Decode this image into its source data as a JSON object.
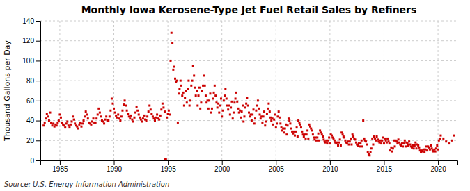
{
  "chart_data": {
    "type": "scatter",
    "title": "Monthly Iowa Kerosene-Type Jet Fuel Retail Sales by Refiners",
    "ylabel": "Thousand Gallons per Day",
    "source": "Source: U.S. Energy Information Administration",
    "color": "#cc0000",
    "marker": "square",
    "grid": true,
    "xlim": [
      1983.2,
      2021.8
    ],
    "ylim": [
      0,
      140
    ],
    "xticks": [
      1985,
      1990,
      1995,
      2000,
      2005,
      2010,
      2015,
      2020
    ],
    "yticks": [
      0,
      20,
      40,
      60,
      80,
      100,
      120,
      140
    ],
    "x": [
      1983.5,
      1983.6,
      1983.7,
      1983.8,
      1983.9,
      1984.0,
      1984.1,
      1984.2,
      1984.3,
      1984.4,
      1984.5,
      1984.6,
      1984.7,
      1984.8,
      1984.9,
      1985.0,
      1985.1,
      1985.2,
      1985.3,
      1985.4,
      1985.5,
      1985.6,
      1985.7,
      1985.8,
      1985.9,
      1986.0,
      1986.1,
      1986.2,
      1986.3,
      1986.4,
      1986.5,
      1986.6,
      1986.7,
      1986.8,
      1986.9,
      1987.0,
      1987.1,
      1987.2,
      1987.3,
      1987.4,
      1987.5,
      1987.6,
      1987.7,
      1987.8,
      1987.9,
      1988.0,
      1988.1,
      1988.2,
      1988.3,
      1988.4,
      1988.5,
      1988.6,
      1988.7,
      1988.8,
      1988.9,
      1989.0,
      1989.1,
      1989.2,
      1989.3,
      1989.4,
      1989.5,
      1989.6,
      1989.7,
      1989.8,
      1989.9,
      1990.0,
      1990.1,
      1990.2,
      1990.3,
      1990.4,
      1990.5,
      1990.6,
      1990.7,
      1990.8,
      1990.9,
      1991.0,
      1991.1,
      1991.2,
      1991.3,
      1991.4,
      1991.5,
      1991.6,
      1991.7,
      1991.8,
      1991.9,
      1992.0,
      1992.1,
      1992.2,
      1992.3,
      1992.4,
      1992.5,
      1992.6,
      1992.7,
      1992.8,
      1992.9,
      1993.0,
      1993.1,
      1993.2,
      1993.3,
      1993.4,
      1993.5,
      1993.6,
      1993.7,
      1993.8,
      1993.9,
      1994.0,
      1994.1,
      1994.2,
      1994.3,
      1994.4,
      1994.5,
      1994.6,
      1994.7,
      1994.75,
      1994.82,
      1994.9,
      1995.0,
      1995.08,
      1995.17,
      1995.25,
      1995.33,
      1995.42,
      1995.5,
      1995.58,
      1995.67,
      1995.75,
      1995.83,
      1995.92,
      1996.0,
      1996.08,
      1996.17,
      1996.25,
      1996.33,
      1996.42,
      1996.5,
      1996.58,
      1996.67,
      1996.75,
      1996.83,
      1996.92,
      1997.0,
      1997.08,
      1997.17,
      1997.25,
      1997.33,
      1997.42,
      1997.5,
      1997.58,
      1997.67,
      1997.75,
      1997.83,
      1997.92,
      1998.0,
      1998.08,
      1998.17,
      1998.25,
      1998.33,
      1998.42,
      1998.5,
      1998.58,
      1998.67,
      1998.75,
      1998.83,
      1998.92,
      1999.0,
      1999.08,
      1999.17,
      1999.25,
      1999.33,
      1999.42,
      1999.5,
      1999.58,
      1999.67,
      1999.75,
      1999.83,
      1999.92,
      2000.0,
      2000.08,
      2000.17,
      2000.25,
      2000.33,
      2000.42,
      2000.5,
      2000.58,
      2000.67,
      2000.75,
      2000.83,
      2000.92,
      2001.0,
      2001.08,
      2001.17,
      2001.25,
      2001.33,
      2001.42,
      2001.5,
      2001.58,
      2001.67,
      2001.75,
      2001.83,
      2001.92,
      2002.0,
      2002.08,
      2002.17,
      2002.25,
      2002.33,
      2002.42,
      2002.5,
      2002.58,
      2002.67,
      2002.75,
      2002.83,
      2002.92,
      2003.0,
      2003.08,
      2003.17,
      2003.25,
      2003.33,
      2003.42,
      2003.5,
      2003.58,
      2003.67,
      2003.75,
      2003.83,
      2003.92,
      2004.0,
      2004.08,
      2004.17,
      2004.25,
      2004.33,
      2004.42,
      2004.5,
      2004.58,
      2004.67,
      2004.75,
      2004.83,
      2004.92,
      2005.0,
      2005.08,
      2005.17,
      2005.25,
      2005.33,
      2005.42,
      2005.5,
      2005.58,
      2005.67,
      2005.75,
      2005.83,
      2005.92,
      2006.0,
      2006.08,
      2006.17,
      2006.25,
      2006.33,
      2006.42,
      2006.5,
      2006.58,
      2006.67,
      2006.75,
      2006.83,
      2006.92,
      2007.0,
      2007.08,
      2007.17,
      2007.25,
      2007.33,
      2007.42,
      2007.5,
      2007.58,
      2007.67,
      2007.75,
      2007.83,
      2007.92,
      2008.0,
      2008.08,
      2008.17,
      2008.25,
      2008.33,
      2008.42,
      2008.5,
      2008.58,
      2008.67,
      2008.75,
      2008.83,
      2008.92,
      2009.0,
      2009.08,
      2009.17,
      2009.25,
      2009.33,
      2009.42,
      2009.5,
      2009.58,
      2009.67,
      2009.75,
      2009.83,
      2009.92,
      2010.0,
      2010.08,
      2010.17,
      2010.25,
      2010.33,
      2010.42,
      2010.5,
      2010.58,
      2010.67,
      2010.75,
      2010.83,
      2010.92,
      2011.0,
      2011.08,
      2011.17,
      2011.25,
      2011.33,
      2011.42,
      2011.5,
      2011.58,
      2011.67,
      2011.75,
      2011.83,
      2011.92,
      2012.0,
      2012.08,
      2012.17,
      2012.25,
      2012.33,
      2012.42,
      2012.5,
      2012.58,
      2012.67,
      2012.75,
      2012.83,
      2012.92,
      2013.0,
      2013.08,
      2013.17,
      2013.25,
      2013.33,
      2013.42,
      2013.5,
      2013.58,
      2013.67,
      2013.75,
      2013.83,
      2013.92,
      2014.0,
      2014.08,
      2014.17,
      2014.25,
      2014.33,
      2014.42,
      2014.5,
      2014.58,
      2014.67,
      2014.75,
      2014.83,
      2014.92,
      2015.0,
      2015.08,
      2015.17,
      2015.25,
      2015.33,
      2015.42,
      2015.5,
      2015.58,
      2015.67,
      2015.75,
      2015.83,
      2015.92,
      2016.0,
      2016.08,
      2016.17,
      2016.25,
      2016.33,
      2016.42,
      2016.5,
      2016.58,
      2016.67,
      2016.75,
      2016.83,
      2016.92,
      2017.0,
      2017.08,
      2017.17,
      2017.25,
      2017.33,
      2017.42,
      2017.5,
      2017.58,
      2017.67,
      2017.75,
      2017.83,
      2017.92,
      2018.0,
      2018.08,
      2018.17,
      2018.25,
      2018.33,
      2018.42,
      2018.5,
      2018.58,
      2018.67,
      2018.75,
      2018.83,
      2018.92,
      2019.0,
      2019.08,
      2019.17,
      2019.25,
      2019.33,
      2019.42,
      2019.5,
      2019.58,
      2019.67,
      2019.75,
      2019.83,
      2019.92,
      2020.0,
      2020.08,
      2020.17,
      2020.25,
      2020.5,
      2020.75,
      2021.0,
      2021.25,
      2021.5
    ],
    "values": [
      35,
      38,
      42,
      47,
      44,
      40,
      48,
      38,
      35,
      37,
      34,
      36,
      35,
      38,
      40,
      46,
      43,
      38,
      36,
      35,
      33,
      37,
      39,
      35,
      33,
      36,
      39,
      44,
      41,
      37,
      35,
      34,
      32,
      36,
      38,
      34,
      37,
      40,
      44,
      49,
      46,
      42,
      38,
      37,
      36,
      39,
      42,
      38,
      38,
      42,
      46,
      52,
      48,
      44,
      40,
      39,
      37,
      41,
      44,
      40,
      40,
      44,
      50,
      62,
      57,
      52,
      48,
      45,
      43,
      46,
      42,
      40,
      44,
      50,
      56,
      60,
      55,
      50,
      47,
      44,
      42,
      45,
      41,
      39,
      43,
      48,
      54,
      50,
      46,
      43,
      41,
      39,
      42,
      45,
      41,
      40,
      44,
      49,
      55,
      51,
      47,
      44,
      42,
      40,
      43,
      46,
      42,
      41,
      45,
      51,
      57,
      53,
      49,
      1,
      1,
      43,
      47,
      50,
      46,
      100,
      128,
      118,
      91,
      94,
      82,
      79,
      80,
      38,
      67,
      72,
      80,
      75,
      65,
      68,
      55,
      63,
      70,
      58,
      72,
      80,
      55,
      60,
      75,
      80,
      95,
      85,
      73,
      65,
      70,
      55,
      65,
      73,
      52,
      58,
      70,
      75,
      85,
      75,
      65,
      58,
      60,
      52,
      60,
      67,
      48,
      52,
      62,
      68,
      75,
      65,
      58,
      53,
      57,
      48,
      55,
      62,
      44,
      50,
      60,
      65,
      72,
      62,
      55,
      51,
      55,
      46,
      53,
      59,
      42,
      48,
      58,
      62,
      68,
      59,
      52,
      48,
      50,
      43,
      49,
      55,
      39,
      44,
      53,
      57,
      63,
      55,
      48,
      44,
      46,
      40,
      46,
      51,
      37,
      42,
      50,
      55,
      60,
      52,
      46,
      42,
      44,
      38,
      44,
      49,
      35,
      39,
      47,
      52,
      57,
      49,
      43,
      40,
      42,
      36,
      41,
      46,
      33,
      37,
      44,
      49,
      43,
      37,
      33,
      30,
      32,
      28,
      32,
      36,
      26,
      35,
      42,
      40,
      37,
      32,
      29,
      27,
      29,
      25,
      29,
      33,
      24,
      40,
      38,
      36,
      33,
      29,
      26,
      24,
      26,
      22,
      26,
      30,
      22,
      36,
      34,
      32,
      30,
      26,
      23,
      21,
      23,
      20,
      23,
      27,
      20,
      30,
      28,
      26,
      24,
      21,
      19,
      18,
      20,
      17,
      20,
      23,
      17,
      26,
      25,
      23,
      22,
      20,
      18,
      17,
      18,
      15,
      18,
      21,
      15,
      28,
      26,
      24,
      23,
      20,
      18,
      17,
      19,
      16,
      19,
      22,
      16,
      26,
      24,
      22,
      21,
      18,
      16,
      15,
      17,
      14,
      17,
      20,
      14,
      40,
      22,
      20,
      19,
      16,
      8,
      6,
      5,
      8,
      12,
      22,
      16,
      24,
      22,
      20,
      24,
      21,
      19,
      18,
      20,
      17,
      20,
      23,
      17,
      22,
      20,
      18,
      22,
      19,
      17,
      10,
      13,
      9,
      12,
      20,
      14,
      20,
      19,
      17,
      21,
      18,
      16,
      15,
      17,
      14,
      17,
      20,
      14,
      18,
      17,
      15,
      19,
      16,
      14,
      13,
      15,
      12,
      15,
      18,
      12,
      16,
      15,
      13,
      10,
      8,
      10,
      9,
      11,
      8,
      11,
      14,
      10,
      14,
      13,
      11,
      15,
      12,
      10,
      9,
      11,
      9,
      12,
      15,
      11,
      20,
      22,
      25,
      22,
      19,
      17,
      20,
      25
    ]
  }
}
